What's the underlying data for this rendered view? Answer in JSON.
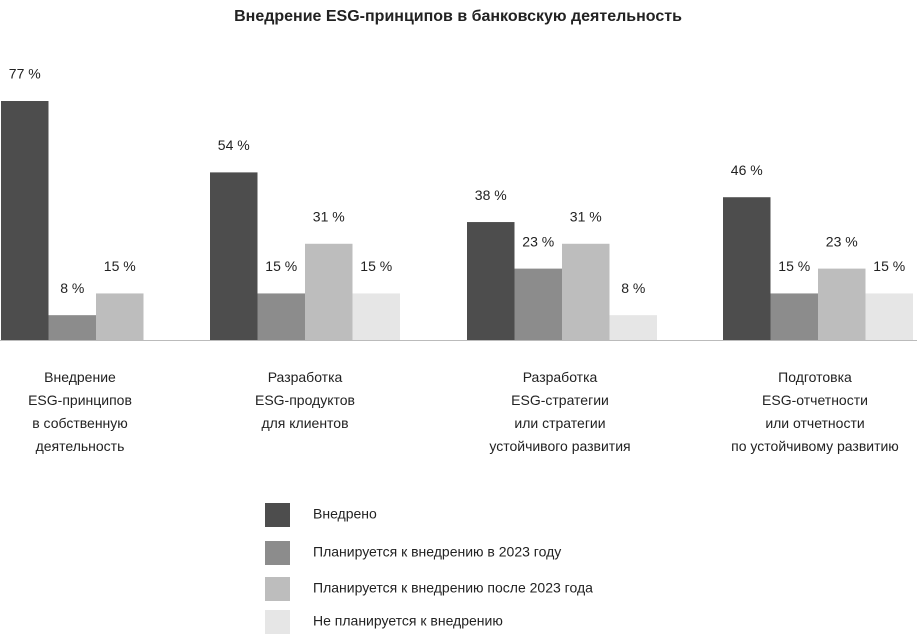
{
  "chart_data": {
    "type": "bar",
    "title": "Внедрение ESG-принципов в банковскую деятельность",
    "categories": [
      "Внедрение\nESG-принципов\nв собственную\nдеятельность",
      "Разработка\nESG-продуктов\nдля клиентов",
      "Разработка\nESG-стратегии\nили стратегии\nустойчивого развития",
      "Подготовка\nESG-отчетности\nили отчетности\nпо устойчивому развитию"
    ],
    "series": [
      {
        "name": "Внедрено",
        "color": "#4d4d4d",
        "values": [
          77,
          54,
          38,
          46
        ],
        "value_labels": [
          "77 %",
          "54 %",
          "38 %",
          "46 %"
        ]
      },
      {
        "name": "Планируется к внедрению в 2023 году",
        "color": "#8c8c8c",
        "values": [
          8,
          15,
          23,
          15
        ],
        "value_labels": [
          "8 %",
          "15 %",
          "23 %",
          "15 %"
        ]
      },
      {
        "name": "Планируется к внедрению после 2023 года",
        "color": "#bdbdbd",
        "values": [
          15,
          31,
          31,
          23
        ],
        "value_labels": [
          "15 %",
          "31 %",
          "31 %",
          "23 %"
        ]
      },
      {
        "name": "Не планируется к внедрению",
        "color": "#e6e6e6",
        "values": [
          null,
          15,
          8,
          15
        ],
        "value_labels": [
          null,
          "15 %",
          "8 %",
          "15 %"
        ]
      }
    ]
  }
}
